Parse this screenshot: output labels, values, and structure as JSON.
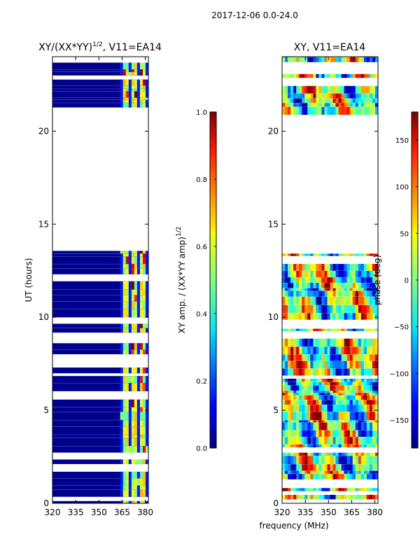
{
  "suptitle": "2017-12-06 0.0-24.0",
  "xlabel": "frequency (MHz)",
  "chart_data": [
    {
      "type": "heatmap",
      "title_main": "XY/(XX*YY)",
      "title_sup": "1/2",
      "title_rest": ", V11=EA14",
      "ylabel": "UT (hours)",
      "xlim": [
        320,
        382
      ],
      "ylim": [
        0,
        24
      ],
      "xticks": [
        "320",
        "335",
        "350",
        "365",
        "380"
      ],
      "xtick_values": [
        320,
        335,
        350,
        365,
        380
      ],
      "yticks": [
        "0",
        "5",
        "10",
        "15",
        "20"
      ],
      "ytick_values": [
        0,
        5,
        10,
        15,
        20
      ],
      "data_gap_hours": [
        14.0,
        20.8
      ],
      "rfi_band_mhz": [
        362,
        381
      ],
      "colorbar": {
        "label_main": "XY amp. / (XX*YY amp)",
        "label_sup": "1/2",
        "range": [
          0.0,
          1.0
        ],
        "ticks": [
          "0.0",
          "0.2",
          "0.4",
          "0.6",
          "0.8",
          "1.0"
        ],
        "tick_values": [
          0.0,
          0.2,
          0.4,
          0.6,
          0.8,
          1.0
        ]
      }
    },
    {
      "type": "heatmap",
      "title": "XY, V11=EA14",
      "xlim": [
        320,
        382
      ],
      "ylim": [
        0,
        24
      ],
      "xticks": [
        "320",
        "335",
        "350",
        "365",
        "380"
      ],
      "xtick_values": [
        320,
        335,
        350,
        365,
        380
      ],
      "yticks": [
        "0",
        "5",
        "10",
        "15",
        "20"
      ],
      "ytick_values": [
        0,
        5,
        10,
        15,
        20
      ],
      "data_gap_hours": [
        14.0,
        20.8
      ],
      "colorbar": {
        "label": "phase (deg)",
        "range": [
          -180,
          180
        ],
        "ticks": [
          "−150",
          "−100",
          "−50",
          "0",
          "50",
          "100",
          "150"
        ],
        "tick_values": [
          -150,
          -100,
          -50,
          0,
          50,
          100,
          150
        ]
      }
    }
  ]
}
